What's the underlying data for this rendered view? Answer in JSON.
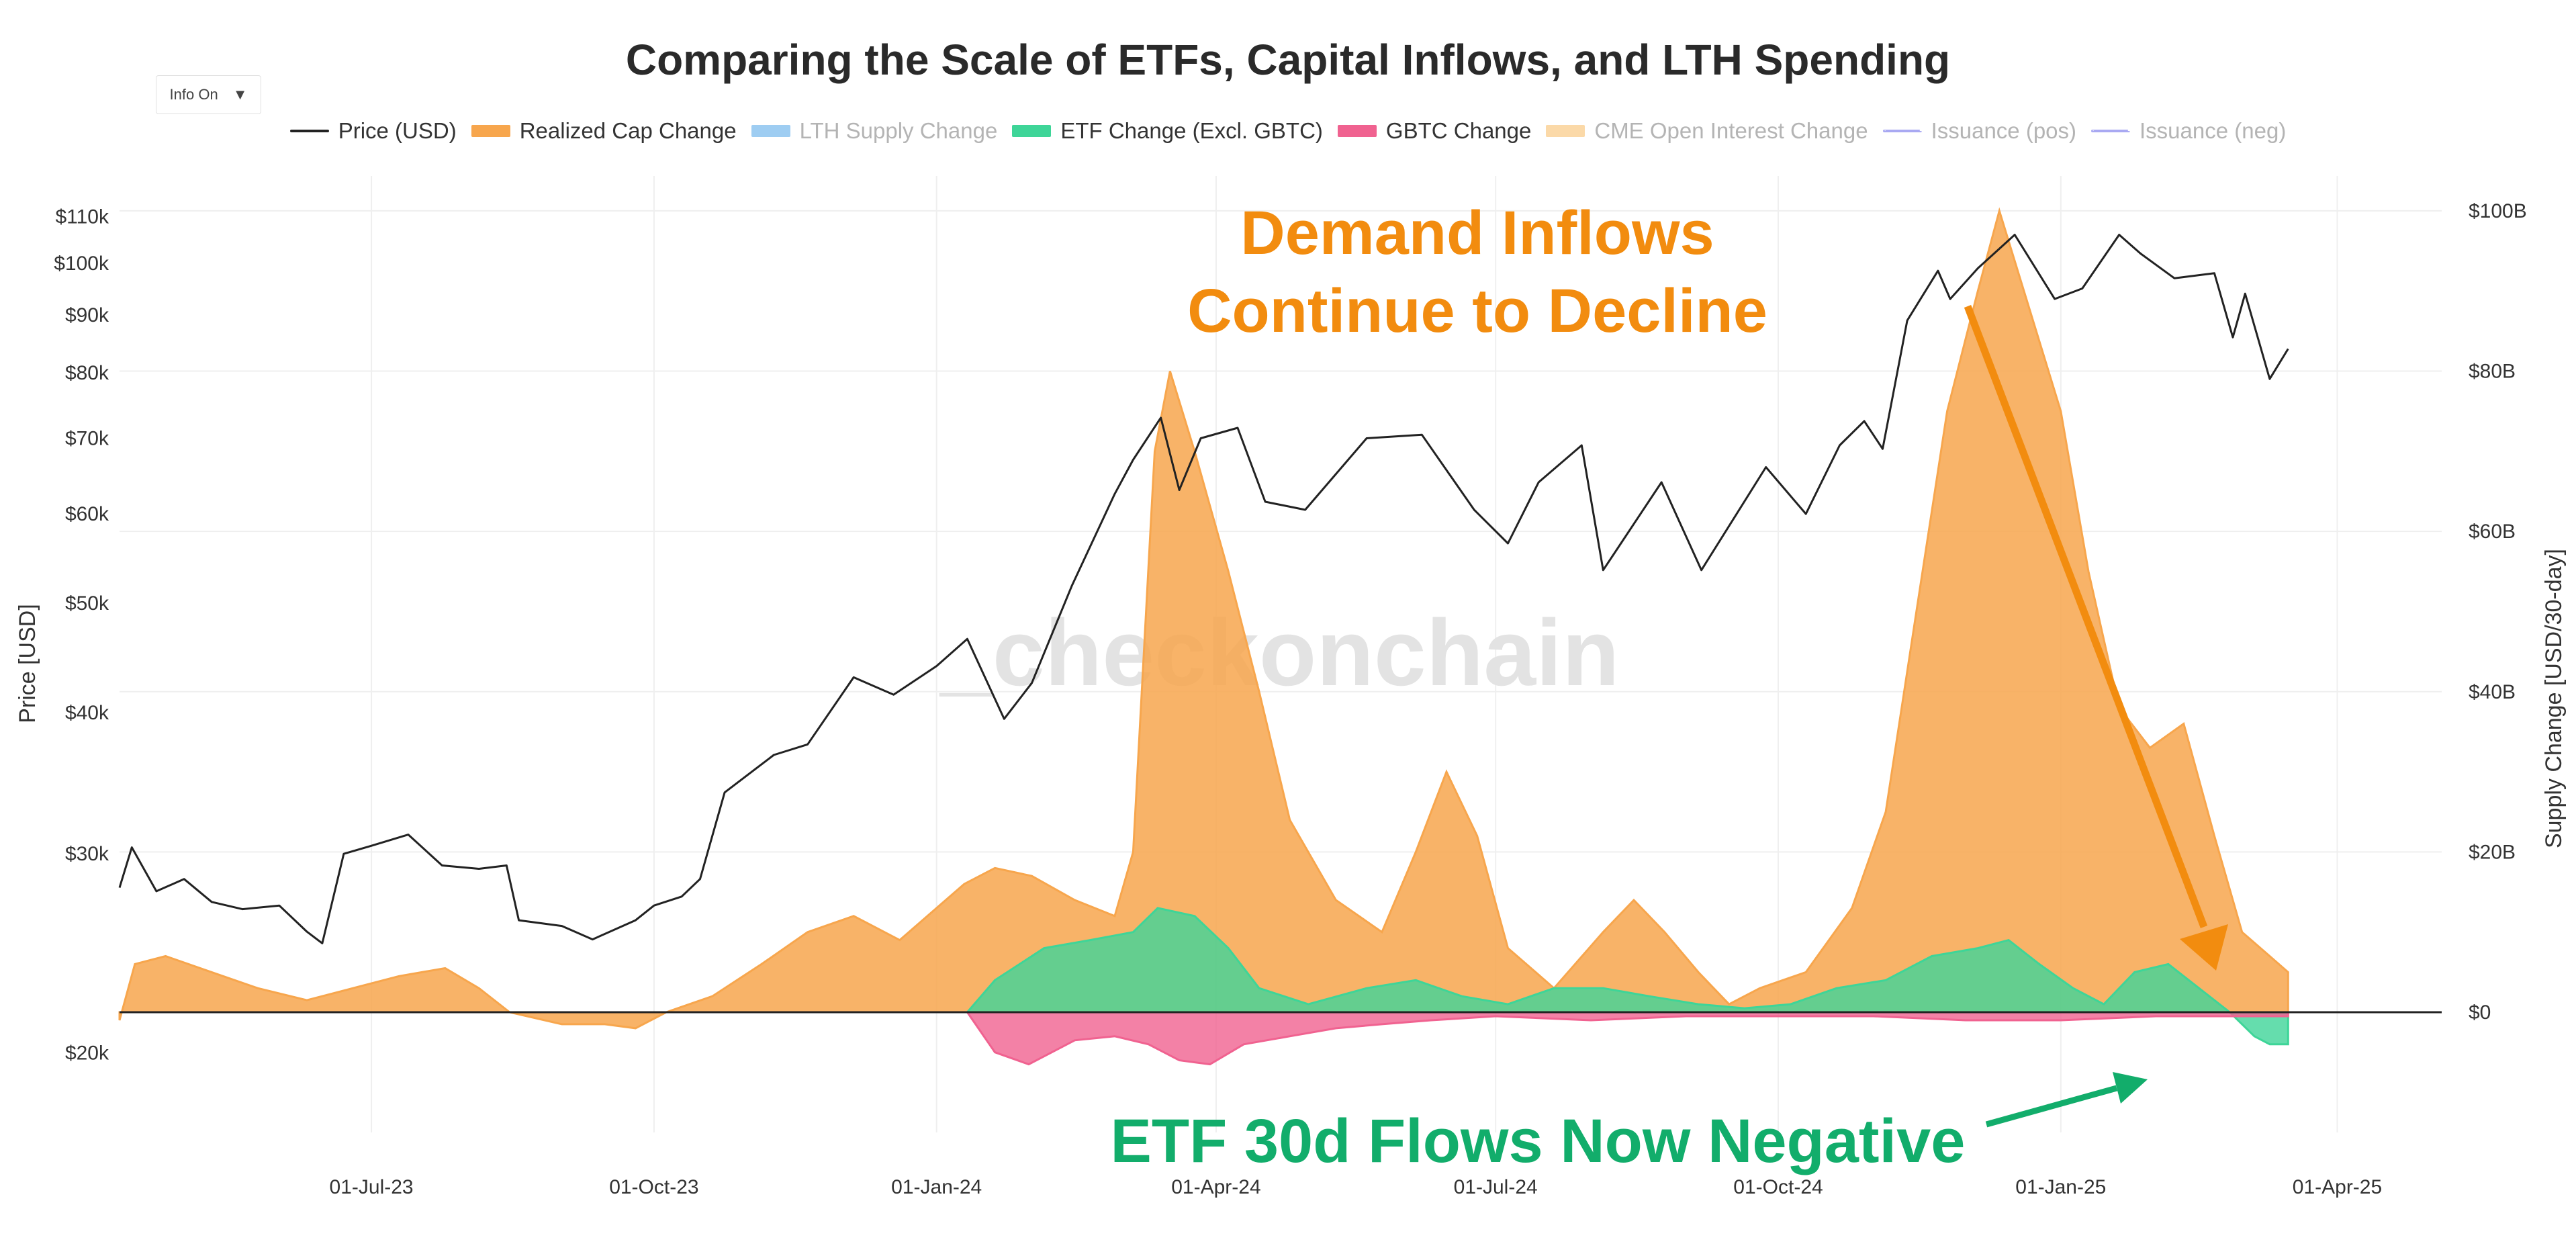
{
  "header": {
    "info_button": "Info On",
    "info_caret": "▼"
  },
  "chart_data": {
    "type": "area",
    "title": "Comparing the Scale of ETFs, Capital Inflows, and LTH Spending",
    "ylabel_left": "Price [USD]",
    "ylabel_right": "Supply Change [USD/30-day]",
    "watermark": "_checkonchain",
    "y_left_scale": "log",
    "y_left_ticks": [
      "$20k",
      "$30k",
      "$40k",
      "$50k",
      "$60k",
      "$70k",
      "$80k",
      "$90k",
      "$100k",
      "$110k"
    ],
    "y_left_tick_values": [
      20000,
      30000,
      40000,
      50000,
      60000,
      70000,
      80000,
      90000,
      100000,
      110000
    ],
    "y_right_ticks": [
      "$0",
      "$20B",
      "$40B",
      "$60B",
      "$80B",
      "$100B"
    ],
    "y_right_tick_values": [
      0,
      20,
      40,
      60,
      80,
      100
    ],
    "y_right_unit": "B USD",
    "x_ticks": [
      "01-Jul-23",
      "01-Oct-23",
      "01-Jan-24",
      "01-Apr-24",
      "01-Jul-24",
      "01-Oct-24",
      "01-Jan-25",
      "01-Apr-25"
    ],
    "x_tick_dates": [
      "2023-07-01",
      "2023-10-01",
      "2024-01-01",
      "2024-04-01",
      "2024-07-01",
      "2024-10-01",
      "2025-01-01",
      "2025-04-01"
    ],
    "x_range": [
      "2023-04-10",
      "2025-05-05"
    ],
    "y_left_range": [
      17000,
      115000
    ],
    "y_right_range": [
      -15,
      102
    ],
    "grid": true,
    "legend_position": "top-center",
    "legend": [
      {
        "name": "Price (USD)",
        "color": "#222222",
        "style": "line",
        "active": true
      },
      {
        "name": "Realized Cap Change",
        "color": "#f7a64d",
        "style": "area",
        "active": true
      },
      {
        "name": "LTH Supply Change",
        "color": "#9ecdf2",
        "style": "area",
        "active": false
      },
      {
        "name": "ETF Change (Excl. GBTC)",
        "color": "#3ed598",
        "style": "area",
        "active": true
      },
      {
        "name": "GBTC Change",
        "color": "#f06290",
        "style": "area",
        "active": true
      },
      {
        "name": "CME Open Interest Change",
        "color": "#fbd9a8",
        "style": "area",
        "active": false
      },
      {
        "name": "Issuance (pos)",
        "color": "#a9a9f2",
        "style": "dash",
        "active": false
      },
      {
        "name": "Issuance (neg)",
        "color": "#a9a9f2",
        "style": "dash",
        "active": false
      }
    ],
    "series": [
      {
        "name": "Price (USD)",
        "axis": "left",
        "color": "#222222",
        "points": [
          [
            "2023-04-10",
            28000
          ],
          [
            "2023-04-14",
            30400
          ],
          [
            "2023-04-22",
            27800
          ],
          [
            "2023-05-01",
            28500
          ],
          [
            "2023-05-10",
            27200
          ],
          [
            "2023-05-20",
            26800
          ],
          [
            "2023-06-01",
            27000
          ],
          [
            "2023-06-10",
            25600
          ],
          [
            "2023-06-15",
            25000
          ],
          [
            "2023-06-22",
            30000
          ],
          [
            "2023-07-01",
            30500
          ],
          [
            "2023-07-13",
            31200
          ],
          [
            "2023-07-24",
            29300
          ],
          [
            "2023-08-05",
            29100
          ],
          [
            "2023-08-14",
            29300
          ],
          [
            "2023-08-18",
            26200
          ],
          [
            "2023-09-01",
            25900
          ],
          [
            "2023-09-11",
            25200
          ],
          [
            "2023-09-25",
            26200
          ],
          [
            "2023-10-01",
            27000
          ],
          [
            "2023-10-10",
            27500
          ],
          [
            "2023-10-16",
            28500
          ],
          [
            "2023-10-24",
            34000
          ],
          [
            "2023-11-09",
            36700
          ],
          [
            "2023-11-20",
            37500
          ],
          [
            "2023-12-05",
            43000
          ],
          [
            "2023-12-18",
            41500
          ],
          [
            "2024-01-01",
            44000
          ],
          [
            "2024-01-11",
            46500
          ],
          [
            "2024-01-23",
            39500
          ],
          [
            "2024-02-01",
            42500
          ],
          [
            "2024-02-14",
            51800
          ],
          [
            "2024-02-28",
            62500
          ],
          [
            "2024-03-05",
            67000
          ],
          [
            "2024-03-14",
            73000
          ],
          [
            "2024-03-20",
            63000
          ],
          [
            "2024-03-27",
            70000
          ],
          [
            "2024-04-08",
            71500
          ],
          [
            "2024-04-17",
            61500
          ],
          [
            "2024-04-30",
            60500
          ],
          [
            "2024-05-20",
            70000
          ],
          [
            "2024-06-07",
            70500
          ],
          [
            "2024-06-24",
            60500
          ],
          [
            "2024-07-05",
            56500
          ],
          [
            "2024-07-15",
            64000
          ],
          [
            "2024-07-29",
            69000
          ],
          [
            "2024-08-05",
            53500
          ],
          [
            "2024-08-24",
            64000
          ],
          [
            "2024-09-06",
            53500
          ],
          [
            "2024-09-27",
            66000
          ],
          [
            "2024-10-10",
            60000
          ],
          [
            "2024-10-21",
            69000
          ],
          [
            "2024-10-29",
            72500
          ],
          [
            "2024-11-04",
            68500
          ],
          [
            "2024-11-12",
            89000
          ],
          [
            "2024-11-22",
            98500
          ],
          [
            "2024-11-26",
            93000
          ],
          [
            "2024-12-05",
            99000
          ],
          [
            "2024-12-17",
            106000
          ],
          [
            "2024-12-30",
            93000
          ],
          [
            "2025-01-08",
            95000
          ],
          [
            "2025-01-20",
            106000
          ],
          [
            "2025-01-27",
            102000
          ],
          [
            "2025-02-07",
            97000
          ],
          [
            "2025-02-20",
            98000
          ],
          [
            "2025-02-26",
            86000
          ],
          [
            "2025-03-02",
            94000
          ],
          [
            "2025-03-10",
            79000
          ],
          [
            "2025-03-16",
            84000
          ]
        ]
      },
      {
        "name": "Realized Cap Change",
        "axis": "right",
        "color": "#f7a64d",
        "points": [
          [
            "2023-04-10",
            -1
          ],
          [
            "2023-04-15",
            6
          ],
          [
            "2023-04-25",
            7
          ],
          [
            "2023-05-10",
            5
          ],
          [
            "2023-05-25",
            3
          ],
          [
            "2023-06-10",
            1.5
          ],
          [
            "2023-06-25",
            3
          ],
          [
            "2023-07-10",
            4.5
          ],
          [
            "2023-07-25",
            5.5
          ],
          [
            "2023-08-05",
            3
          ],
          [
            "2023-08-15",
            0
          ],
          [
            "2023-09-01",
            -1.5
          ],
          [
            "2023-09-15",
            -1.5
          ],
          [
            "2023-09-25",
            -2
          ],
          [
            "2023-10-05",
            0
          ],
          [
            "2023-10-20",
            2
          ],
          [
            "2023-11-05",
            6
          ],
          [
            "2023-11-20",
            10
          ],
          [
            "2023-12-05",
            12
          ],
          [
            "2023-12-20",
            9
          ],
          [
            "2024-01-01",
            13
          ],
          [
            "2024-01-10",
            16
          ],
          [
            "2024-01-20",
            18
          ],
          [
            "2024-02-01",
            17
          ],
          [
            "2024-02-15",
            14
          ],
          [
            "2024-02-28",
            12
          ],
          [
            "2024-03-05",
            20
          ],
          [
            "2024-03-12",
            70
          ],
          [
            "2024-03-17",
            80
          ],
          [
            "2024-03-25",
            70
          ],
          [
            "2024-04-05",
            55
          ],
          [
            "2024-04-15",
            40
          ],
          [
            "2024-04-25",
            24
          ],
          [
            "2024-05-10",
            14
          ],
          [
            "2024-05-25",
            10
          ],
          [
            "2024-06-05",
            20
          ],
          [
            "2024-06-15",
            30
          ],
          [
            "2024-06-25",
            22
          ],
          [
            "2024-07-05",
            8
          ],
          [
            "2024-07-20",
            3
          ],
          [
            "2024-08-05",
            10
          ],
          [
            "2024-08-15",
            14
          ],
          [
            "2024-08-25",
            10
          ],
          [
            "2024-09-05",
            5
          ],
          [
            "2024-09-15",
            1
          ],
          [
            "2024-09-25",
            3
          ],
          [
            "2024-10-10",
            5
          ],
          [
            "2024-10-25",
            13
          ],
          [
            "2024-11-05",
            25
          ],
          [
            "2024-11-15",
            50
          ],
          [
            "2024-11-25",
            75
          ],
          [
            "2024-12-05",
            90
          ],
          [
            "2024-12-12",
            100
          ],
          [
            "2024-12-20",
            90
          ],
          [
            "2025-01-01",
            75
          ],
          [
            "2025-01-10",
            55
          ],
          [
            "2025-01-20",
            38
          ],
          [
            "2025-01-30",
            33
          ],
          [
            "2025-02-10",
            36
          ],
          [
            "2025-02-20",
            22
          ],
          [
            "2025-03-01",
            10
          ],
          [
            "2025-03-10",
            7
          ],
          [
            "2025-03-16",
            5
          ]
        ]
      },
      {
        "name": "ETF Change (Excl. GBTC)",
        "axis": "right",
        "color": "#3ed598",
        "points": [
          [
            "2024-01-11",
            0
          ],
          [
            "2024-01-20",
            4
          ],
          [
            "2024-02-05",
            8
          ],
          [
            "2024-02-20",
            9
          ],
          [
            "2024-03-05",
            10
          ],
          [
            "2024-03-13",
            13
          ],
          [
            "2024-03-25",
            12
          ],
          [
            "2024-04-05",
            8
          ],
          [
            "2024-04-15",
            3
          ],
          [
            "2024-05-01",
            1
          ],
          [
            "2024-05-20",
            3
          ],
          [
            "2024-06-05",
            4
          ],
          [
            "2024-06-20",
            2
          ],
          [
            "2024-07-05",
            1
          ],
          [
            "2024-07-20",
            3
          ],
          [
            "2024-08-05",
            3
          ],
          [
            "2024-08-20",
            2
          ],
          [
            "2024-09-05",
            1
          ],
          [
            "2024-09-20",
            0.5
          ],
          [
            "2024-10-05",
            1
          ],
          [
            "2024-10-20",
            3
          ],
          [
            "2024-11-05",
            4
          ],
          [
            "2024-11-20",
            7
          ],
          [
            "2024-12-05",
            8
          ],
          [
            "2024-12-15",
            9
          ],
          [
            "2024-12-25",
            6
          ],
          [
            "2025-01-05",
            3
          ],
          [
            "2025-01-15",
            1
          ],
          [
            "2025-01-25",
            5
          ],
          [
            "2025-02-05",
            6
          ],
          [
            "2025-02-15",
            3
          ],
          [
            "2025-02-25",
            0
          ],
          [
            "2025-03-05",
            -3
          ],
          [
            "2025-03-10",
            -4
          ],
          [
            "2025-03-16",
            -4
          ]
        ]
      },
      {
        "name": "GBTC Change",
        "axis": "right",
        "color": "#f06290",
        "points": [
          [
            "2024-01-11",
            0
          ],
          [
            "2024-01-20",
            -5
          ],
          [
            "2024-01-31",
            -6.5
          ],
          [
            "2024-02-15",
            -3.5
          ],
          [
            "2024-02-28",
            -3
          ],
          [
            "2024-03-10",
            -4
          ],
          [
            "2024-03-20",
            -6
          ],
          [
            "2024-03-30",
            -6.5
          ],
          [
            "2024-04-10",
            -4
          ],
          [
            "2024-04-25",
            -3
          ],
          [
            "2024-05-10",
            -2
          ],
          [
            "2024-05-25",
            -1.5
          ],
          [
            "2024-06-10",
            -1
          ],
          [
            "2024-07-01",
            -0.5
          ],
          [
            "2024-08-01",
            -1
          ],
          [
            "2024-09-01",
            -0.5
          ],
          [
            "2024-10-01",
            -0.5
          ],
          [
            "2024-11-01",
            -0.5
          ],
          [
            "2024-12-01",
            -1
          ],
          [
            "2025-01-01",
            -1
          ],
          [
            "2025-02-01",
            -0.5
          ],
          [
            "2025-03-01",
            -0.5
          ],
          [
            "2025-03-16",
            -0.5
          ]
        ]
      }
    ],
    "annotations": [
      {
        "text": "Demand Inflows",
        "color": "#f28c0f"
      },
      {
        "text": "Continue to Decline",
        "color": "#f28c0f"
      },
      {
        "text": "ETF 30d Flows Now Negative",
        "color": "#12ad6b"
      }
    ]
  }
}
